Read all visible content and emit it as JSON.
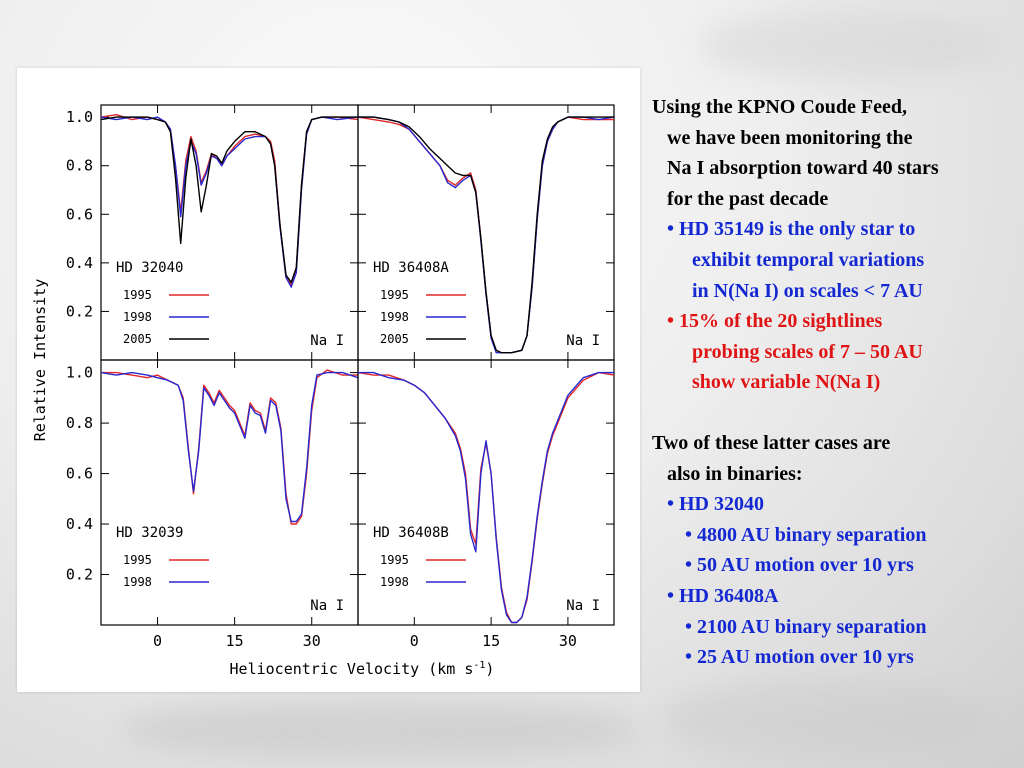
{
  "colors": {
    "series_1995": "#e02828",
    "series_1998": "#2828d0",
    "series_2005": "#000000",
    "text_blue": "#1428d2",
    "text_red": "#e01414"
  },
  "figure": {
    "ylabel": "Relative Intensity",
    "xlabel": "Heliocentric Velocity (km s",
    "xlabel_sup": "-1",
    "xlabel_end": ")",
    "species": "Na I"
  },
  "chart_data": [
    {
      "type": "line",
      "title": "HD 32040",
      "xlim": [
        -11,
        39
      ],
      "ylim": [
        0,
        1.05
      ],
      "xticks": [
        "0",
        "15",
        "30"
      ],
      "yticks": [
        "0.2",
        "0.4",
        "0.6",
        "0.8",
        "1.0"
      ],
      "annotation": "Na I",
      "legend": [
        {
          "name": "1995",
          "color": "#e02828"
        },
        {
          "name": "1998",
          "color": "#2828d0"
        },
        {
          "name": "2005",
          "color": "#000000"
        }
      ],
      "x": [
        -11,
        -8,
        -5,
        -2,
        0,
        1.5,
        2.5,
        3.5,
        4.5,
        5.5,
        6.5,
        7.5,
        8.5,
        9.5,
        10.5,
        11.5,
        12.5,
        13.5,
        15,
        17,
        19,
        21,
        22,
        22.8,
        23.8,
        25,
        26,
        27,
        28,
        29,
        30,
        32,
        35,
        39
      ],
      "series": [
        {
          "name": "1995",
          "values": [
            1.0,
            1.01,
            0.99,
            1.0,
            0.99,
            0.98,
            0.95,
            0.8,
            0.61,
            0.82,
            0.92,
            0.86,
            0.73,
            0.78,
            0.85,
            0.83,
            0.8,
            0.84,
            0.88,
            0.92,
            0.93,
            0.92,
            0.9,
            0.82,
            0.56,
            0.34,
            0.31,
            0.38,
            0.72,
            0.94,
            0.99,
            1.0,
            1.0,
            0.99
          ]
        },
        {
          "name": "1998",
          "values": [
            1.0,
            0.99,
            1.0,
            0.99,
            1.0,
            0.98,
            0.95,
            0.8,
            0.59,
            0.8,
            0.9,
            0.85,
            0.72,
            0.77,
            0.84,
            0.83,
            0.8,
            0.84,
            0.87,
            0.91,
            0.92,
            0.92,
            0.89,
            0.8,
            0.55,
            0.34,
            0.3,
            0.36,
            0.7,
            0.93,
            0.99,
            1.0,
            0.99,
            1.0
          ]
        },
        {
          "name": "2005",
          "values": [
            0.99,
            1.0,
            1.0,
            1.0,
            0.99,
            0.98,
            0.94,
            0.75,
            0.48,
            0.75,
            0.91,
            0.8,
            0.61,
            0.72,
            0.85,
            0.84,
            0.81,
            0.86,
            0.9,
            0.94,
            0.94,
            0.92,
            0.89,
            0.8,
            0.56,
            0.35,
            0.32,
            0.38,
            0.72,
            0.94,
            0.99,
            1.0,
            1.0,
            1.0
          ]
        }
      ]
    },
    {
      "type": "line",
      "title": "HD 36408A",
      "xlim": [
        -11,
        39
      ],
      "ylim": [
        0,
        1.05
      ],
      "xticks": [
        "0",
        "15",
        "30"
      ],
      "yticks": [
        "0.2",
        "0.4",
        "0.6",
        "0.8",
        "1.0"
      ],
      "annotation": "Na I",
      "legend": [
        {
          "name": "1995",
          "color": "#e02828"
        },
        {
          "name": "1998",
          "color": "#2828d0"
        },
        {
          "name": "2005",
          "color": "#000000"
        }
      ],
      "x": [
        -11,
        -8,
        -5,
        -3,
        -1,
        1,
        3,
        5,
        6.5,
        8,
        9.5,
        11,
        12,
        13,
        14,
        15,
        16,
        17,
        19,
        21,
        22,
        23,
        24,
        25,
        26,
        27,
        28,
        30,
        33,
        36,
        39
      ],
      "series": [
        {
          "name": "1995",
          "values": [
            1.0,
            0.99,
            0.98,
            0.97,
            0.95,
            0.9,
            0.85,
            0.8,
            0.74,
            0.72,
            0.75,
            0.77,
            0.7,
            0.5,
            0.28,
            0.1,
            0.04,
            0.03,
            0.03,
            0.04,
            0.1,
            0.3,
            0.58,
            0.8,
            0.9,
            0.95,
            0.98,
            1.0,
            0.99,
            0.99,
            0.99
          ]
        },
        {
          "name": "1998",
          "values": [
            1.0,
            1.0,
            0.99,
            0.98,
            0.95,
            0.9,
            0.85,
            0.8,
            0.73,
            0.71,
            0.74,
            0.76,
            0.69,
            0.49,
            0.27,
            0.09,
            0.03,
            0.03,
            0.03,
            0.04,
            0.1,
            0.3,
            0.58,
            0.8,
            0.9,
            0.95,
            0.98,
            1.0,
            1.0,
            0.99,
            1.0
          ]
        },
        {
          "name": "2005",
          "values": [
            1.0,
            1.0,
            0.99,
            0.98,
            0.96,
            0.92,
            0.87,
            0.83,
            0.8,
            0.77,
            0.76,
            0.76,
            0.69,
            0.5,
            0.28,
            0.1,
            0.04,
            0.03,
            0.03,
            0.04,
            0.1,
            0.32,
            0.6,
            0.82,
            0.91,
            0.96,
            0.98,
            1.0,
            1.0,
            1.0,
            1.0
          ]
        }
      ]
    },
    {
      "type": "line",
      "title": "HD 32039",
      "xlim": [
        -11,
        39
      ],
      "ylim": [
        0,
        1.05
      ],
      "xticks": [
        "0",
        "15",
        "30"
      ],
      "yticks": [
        "0.2",
        "0.4",
        "0.6",
        "0.8",
        "1.0"
      ],
      "annotation": "Na I",
      "legend": [
        {
          "name": "1995",
          "color": "#e02828"
        },
        {
          "name": "1998",
          "color": "#2828d0"
        }
      ],
      "x": [
        -11,
        -8,
        -5,
        -2,
        0,
        2,
        4,
        5,
        6,
        7,
        8,
        9,
        10,
        11,
        12,
        13,
        14,
        15,
        16,
        17,
        18,
        19,
        20,
        21,
        22,
        23,
        24,
        25,
        26,
        27,
        28,
        29,
        30,
        31,
        33,
        36,
        39
      ],
      "series": [
        {
          "name": "1995",
          "values": [
            1.0,
            1.0,
            0.99,
            0.98,
            0.99,
            0.97,
            0.95,
            0.9,
            0.7,
            0.52,
            0.7,
            0.95,
            0.92,
            0.88,
            0.93,
            0.9,
            0.87,
            0.85,
            0.8,
            0.75,
            0.88,
            0.85,
            0.84,
            0.77,
            0.9,
            0.88,
            0.78,
            0.52,
            0.4,
            0.4,
            0.43,
            0.6,
            0.85,
            0.98,
            1.01,
            0.99,
            0.99
          ]
        },
        {
          "name": "1998",
          "values": [
            1.0,
            0.99,
            1.0,
            0.99,
            0.98,
            0.97,
            0.95,
            0.89,
            0.69,
            0.53,
            0.69,
            0.94,
            0.91,
            0.87,
            0.92,
            0.89,
            0.86,
            0.84,
            0.79,
            0.74,
            0.87,
            0.84,
            0.83,
            0.76,
            0.89,
            0.87,
            0.77,
            0.5,
            0.41,
            0.41,
            0.44,
            0.62,
            0.87,
            0.99,
            1.0,
            1.0,
            0.98
          ]
        }
      ]
    },
    {
      "type": "line",
      "title": "HD 36408B",
      "xlim": [
        -11,
        39
      ],
      "ylim": [
        0,
        1.05
      ],
      "xticks": [
        "0",
        "15",
        "30"
      ],
      "yticks": [
        "0.2",
        "0.4",
        "0.6",
        "0.8",
        "1.0"
      ],
      "annotation": "Na I",
      "legend": [
        {
          "name": "1995",
          "color": "#e02828"
        },
        {
          "name": "1998",
          "color": "#2828d0"
        }
      ],
      "x": [
        -11,
        -8,
        -5,
        -2,
        0,
        2,
        4,
        6,
        8,
        9,
        10,
        11,
        12,
        13,
        14,
        15,
        16,
        17,
        18,
        19,
        20,
        21,
        22,
        23,
        24,
        25,
        26,
        27,
        28,
        30,
        33,
        36,
        39
      ],
      "series": [
        {
          "name": "1995",
          "values": [
            1.0,
            0.99,
            0.99,
            0.97,
            0.95,
            0.92,
            0.87,
            0.82,
            0.76,
            0.7,
            0.6,
            0.38,
            0.32,
            0.62,
            0.72,
            0.6,
            0.35,
            0.15,
            0.05,
            0.01,
            0.01,
            0.03,
            0.1,
            0.25,
            0.42,
            0.56,
            0.68,
            0.75,
            0.8,
            0.9,
            0.97,
            1.0,
            0.99
          ]
        },
        {
          "name": "1998",
          "values": [
            1.0,
            1.0,
            0.98,
            0.97,
            0.95,
            0.92,
            0.87,
            0.82,
            0.75,
            0.69,
            0.58,
            0.36,
            0.29,
            0.6,
            0.73,
            0.6,
            0.34,
            0.14,
            0.04,
            0.01,
            0.01,
            0.03,
            0.11,
            0.26,
            0.43,
            0.57,
            0.69,
            0.76,
            0.81,
            0.91,
            0.98,
            1.0,
            1.0
          ]
        }
      ]
    }
  ],
  "text_panel": {
    "intro_1": "Using the KPNO Coude Feed,",
    "intro_2": "we have been monitoring the",
    "intro_3": "Na I absorption toward 40 stars",
    "intro_4": "for the past decade",
    "b1_1": "• HD 35149 is the only star to",
    "b1_2": "exhibit temporal variations",
    "b1_3": "in N(Na I) on scales < 7 AU",
    "b2_1": "• 15% of the 20 sightlines",
    "b2_2": "probing scales of 7 – 50 AU",
    "b2_3": "show variable N(Na I)",
    "binaries_1": "Two of these latter cases are",
    "binaries_2": "also in binaries:",
    "star_1": "• HD 32040",
    "star_1_a": "• 4800 AU binary separation",
    "star_1_b": "• 50 AU motion over 10 yrs",
    "star_2": "• HD 36408A",
    "star_2_a": "• 2100 AU binary separation",
    "star_2_b": "• 25 AU motion over 10 yrs"
  }
}
